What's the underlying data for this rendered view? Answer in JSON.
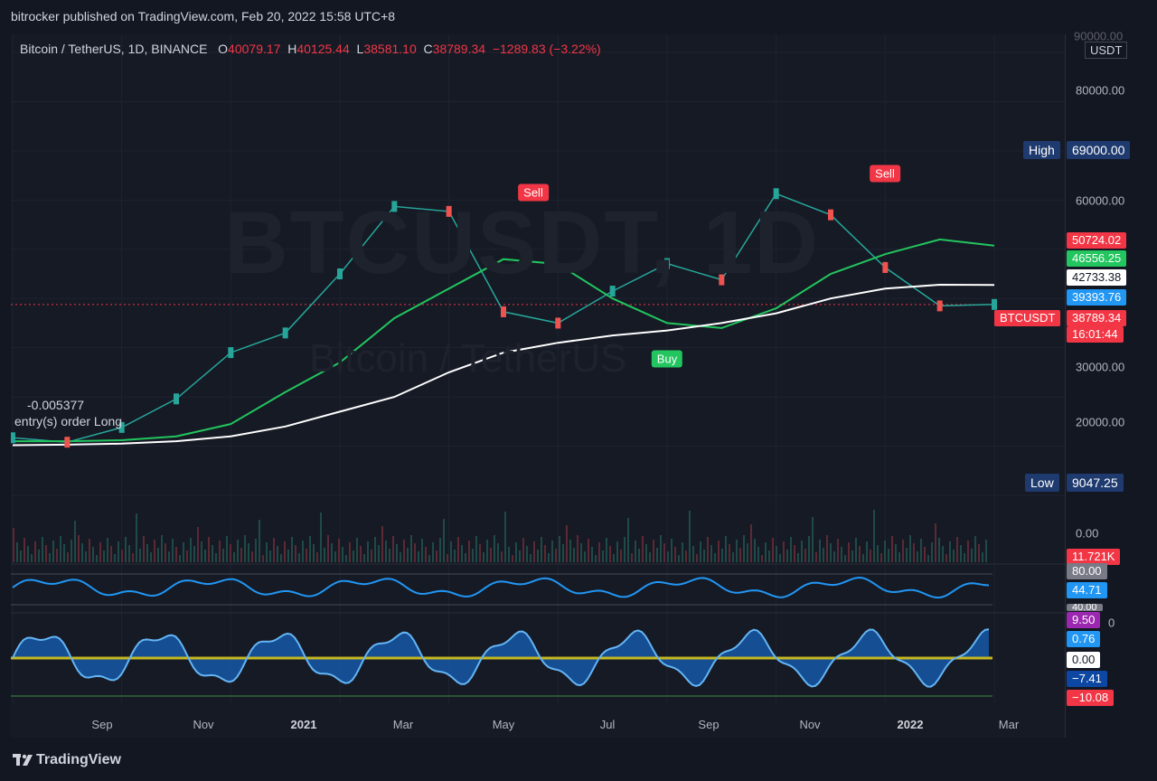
{
  "header": {
    "publisher": "bitrocker published on TradingView.com, Feb 20, 2022 15:58 UTC+8"
  },
  "legend": {
    "symbol": "Bitcoin / TetherUS, 1D, BINANCE",
    "open_label": "O",
    "open": "40079.17",
    "high_label": "H",
    "high": "40125.44",
    "low_label": "L",
    "low": "38581.10",
    "close_label": "C",
    "close": "38789.34",
    "change": "−1289.83 (−3.22%)"
  },
  "currency_box": "USDT",
  "watermark": {
    "ticker": "BTCUSDT, 1D",
    "name": "Bitcoin / TetherUS"
  },
  "price_axis": {
    "labels": [
      "90000.00",
      "80000.00",
      "60000.00",
      "30000.00",
      "20000.00",
      "0.00"
    ],
    "high_badge": "High",
    "high_value": "69000.00",
    "low_badge": "Low",
    "low_value": "9047.25",
    "tag_upper": "50724.02",
    "tag_green": "46556.25",
    "tag_white": "42733.38",
    "tag_blue": "39393.76",
    "tag_last": "38789.34",
    "tag_countdown": "16:01:44",
    "ticker_badge": "BTCUSDT",
    "volume_tag": "11.721K"
  },
  "osc_axis": {
    "rsi_upper": "80.00",
    "rsi_value": "44.71",
    "rsi_lower_partial": "40.00",
    "m_upper_partial": "0",
    "m_top": "9.50",
    "m_val": "0.76",
    "m_zero": "0.00",
    "m_neg": "−7.41",
    "m_low": "−10.08"
  },
  "signals": {
    "sell1": "Sell",
    "sell2": "Sell",
    "buy": "Buy"
  },
  "annotation": {
    "value": "-0.005377",
    "text": "entry(s) order Long"
  },
  "time_axis": [
    "Sep",
    "Nov",
    "2021",
    "Mar",
    "May",
    "Jul",
    "Sep",
    "Nov",
    "2022",
    "Mar"
  ],
  "brand": "TradingView",
  "colors": {
    "bg": "#131722",
    "up": "#26a69a",
    "down": "#ef5350",
    "green_line": "#22c55e",
    "red_line": "#f23645",
    "blue": "#2196f3"
  },
  "chart_data": {
    "type": "line",
    "x": [
      "2020-08",
      "2020-09",
      "2020-10",
      "2020-11",
      "2020-12",
      "2021-01",
      "2021-02",
      "2021-03",
      "2021-04",
      "2021-05",
      "2021-06",
      "2021-07",
      "2021-08",
      "2021-09",
      "2021-10",
      "2021-11",
      "2021-12",
      "2022-01",
      "2022-02"
    ],
    "series": [
      {
        "values": [
          11700,
          10800,
          13800,
          19600,
          29000,
          33000,
          45000,
          58700,
          57700,
          37300,
          35000,
          41500,
          47100,
          43800,
          61300,
          57000,
          46300,
          38500,
          38789
        ]
      },
      {
        "values": [
          11000,
          11000,
          11200,
          12000,
          14500,
          21000,
          27000,
          36000,
          42000,
          48000,
          47000,
          40000,
          35000,
          34000,
          38000,
          45000,
          49000,
          52000,
          50724
        ]
      },
      {
        "values": [
          10200,
          10300,
          10500,
          11000,
          12000,
          14000,
          17000,
          20000,
          25000,
          29000,
          31000,
          32500,
          33500,
          35000,
          37000,
          40000,
          42000,
          42800,
          42733
        ]
      }
    ],
    "ylim": [
      0,
      90000
    ]
  }
}
